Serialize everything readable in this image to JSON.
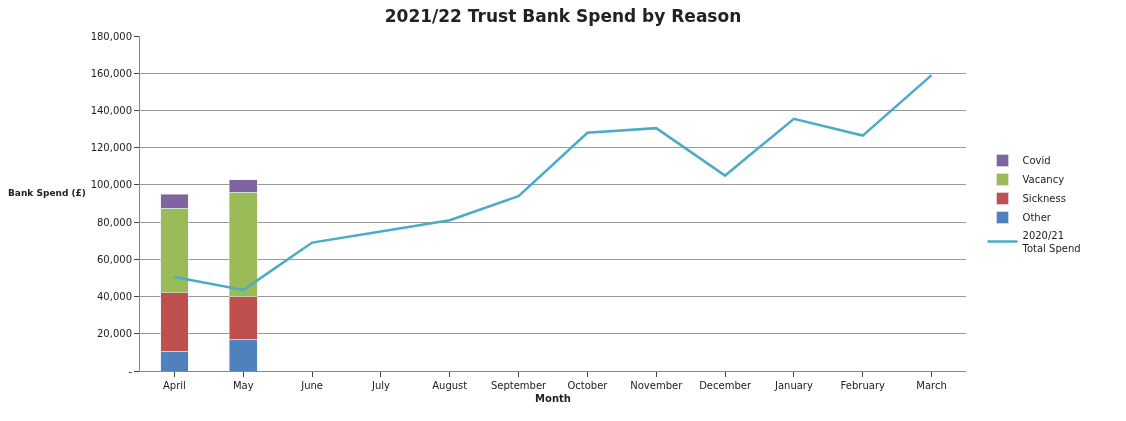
{
  "chart_data": {
    "type": "bar",
    "title": "2021/22 Trust Bank Spend by Reason",
    "xlabel": "Month",
    "ylabel": "Bank Spend (£)",
    "categories": [
      "April",
      "May",
      "June",
      "July",
      "August",
      "September",
      "October",
      "November",
      "December",
      "January",
      "February",
      "March"
    ],
    "stacked": true,
    "series": [
      {
        "name": "Other",
        "color": "#4f81bd",
        "values": [
          10500,
          17000,
          null,
          null,
          null,
          null,
          null,
          null,
          null,
          null,
          null,
          null
        ]
      },
      {
        "name": "Sickness",
        "color": "#c0504d",
        "values": [
          31500,
          23000,
          null,
          null,
          null,
          null,
          null,
          null,
          null,
          null,
          null,
          null
        ]
      },
      {
        "name": "Vacancy",
        "color": "#9bbb59",
        "values": [
          45500,
          56000,
          null,
          null,
          null,
          null,
          null,
          null,
          null,
          null,
          null,
          null
        ]
      },
      {
        "name": "Covid",
        "color": "#8064a2",
        "values": [
          7500,
          6800,
          null,
          null,
          null,
          null,
          null,
          null,
          null,
          null,
          null,
          null
        ]
      },
      {
        "name": "2020/21\nTotal Spend",
        "type": "line",
        "color": "#4bacc6",
        "values": [
          50500,
          43500,
          69000,
          75000,
          81000,
          94000,
          128000,
          130500,
          105000,
          135500,
          126500,
          159000
        ]
      }
    ],
    "ylim": [
      0,
      180000
    ],
    "yticks": [
      {
        "value": 0,
        "label": "-"
      },
      {
        "value": 20000,
        "label": "20,000"
      },
      {
        "value": 40000,
        "label": "40,000"
      },
      {
        "value": 60000,
        "label": "60,000"
      },
      {
        "value": 80000,
        "label": "80,000"
      },
      {
        "value": 100000,
        "label": "100,000"
      },
      {
        "value": 120000,
        "label": "120,000"
      },
      {
        "value": 140000,
        "label": "140,000"
      },
      {
        "value": 160000,
        "label": "160,000"
      },
      {
        "value": 180000,
        "label": "180,000"
      }
    ],
    "grid": "y",
    "legend": "right",
    "marker": "none"
  }
}
